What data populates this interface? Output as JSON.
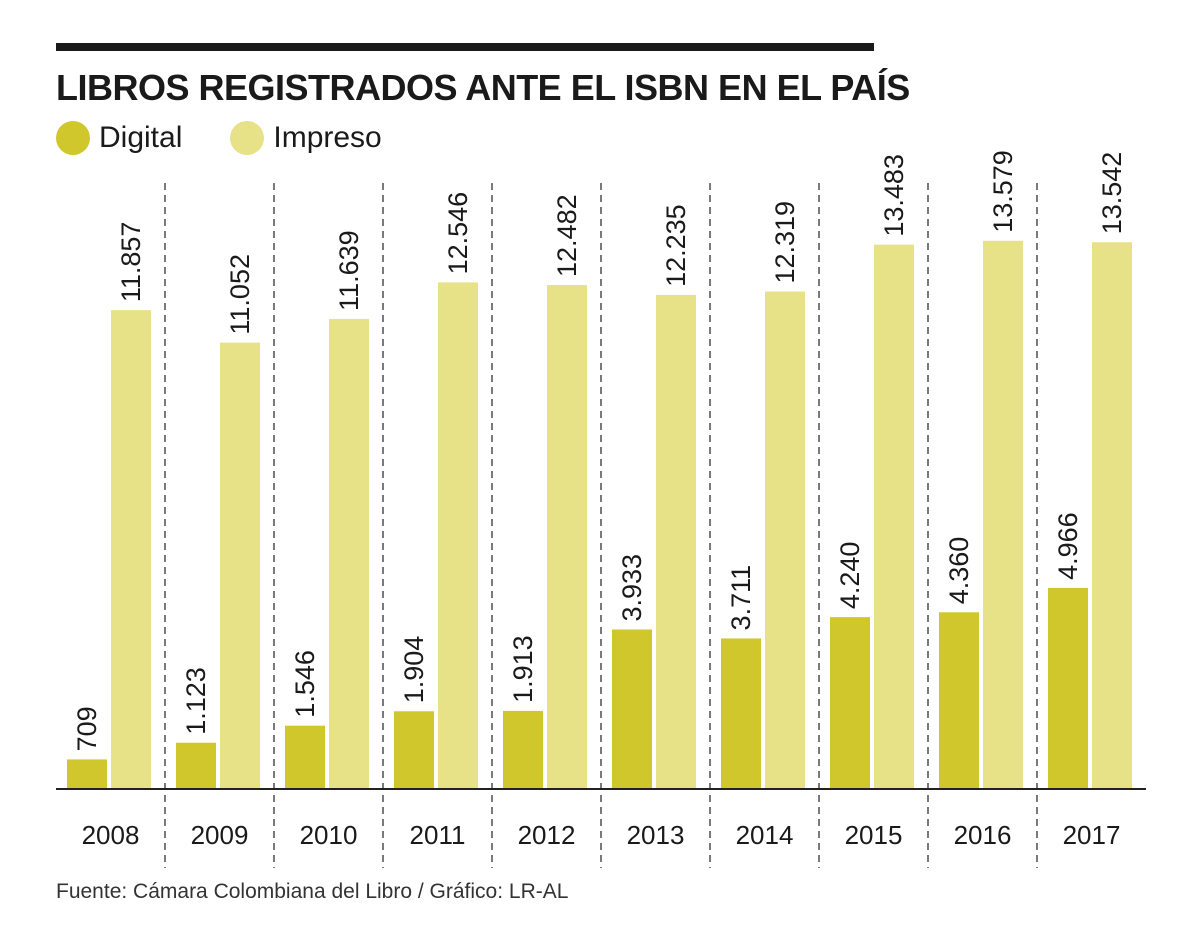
{
  "title": "LIBROS REGISTRADOS ANTE EL ISBN EN EL PAÍS",
  "legend": {
    "digital": {
      "label": "Digital",
      "color": "#cfc72c"
    },
    "impreso": {
      "label": "Impreso",
      "color": "#e7e187"
    }
  },
  "source": "Fuente: Cámara Colombiana del Libro / Gráfico: LR-AL",
  "chart_data": {
    "type": "bar",
    "title": "LIBROS REGISTRADOS ANTE EL ISBN EN EL PAÍS",
    "xlabel": "",
    "ylabel": "",
    "ylim": [
      0,
      15000
    ],
    "grid": false,
    "legend_position": "top-left",
    "categories": [
      "2008",
      "2009",
      "2010",
      "2011",
      "2012",
      "2013",
      "2014",
      "2015",
      "2016",
      "2017"
    ],
    "series": [
      {
        "name": "Digital",
        "color": "#cfc72c",
        "values": [
          709,
          1123,
          1546,
          1904,
          1913,
          3933,
          3711,
          4240,
          4360,
          4966
        ],
        "labels": [
          "709",
          "1.123",
          "1.546",
          "1.904",
          "1.913",
          "3.933",
          "3.711",
          "4.240",
          "4.360",
          "4.966"
        ]
      },
      {
        "name": "Impreso",
        "color": "#e7e187",
        "values": [
          11857,
          11052,
          11639,
          12546,
          12482,
          12235,
          12319,
          13483,
          13579,
          13542
        ],
        "labels": [
          "11.857",
          "11.052",
          "11.639",
          "12.546",
          "12.482",
          "12.235",
          "12.319",
          "13.483",
          "13.579",
          "13.542"
        ]
      }
    ]
  }
}
